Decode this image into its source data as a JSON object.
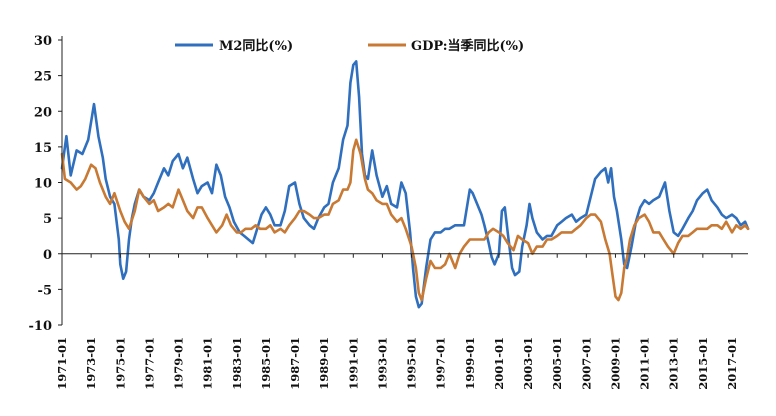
{
  "chart_data": {
    "type": "line",
    "title": "",
    "xlabel": "",
    "ylabel": "",
    "ylim": [
      -10,
      30
    ],
    "yticks": [
      30,
      25,
      20,
      15,
      10,
      5,
      0,
      -5,
      -10
    ],
    "xticks": [
      "1971-01",
      "1973-01",
      "1975-01",
      "1977-01",
      "1979-01",
      "1981-01",
      "1983-01",
      "1985-01",
      "1987-01",
      "1989-01",
      "1991-01",
      "1993-01",
      "1995-01",
      "1997-01",
      "1999-01",
      "2001-01",
      "2003-01",
      "2005-01",
      "2007-01",
      "2009-01",
      "2011-01",
      "2013-01",
      "2015-01",
      "2017-01"
    ],
    "grid": false,
    "legend_position": "top",
    "series": [
      {
        "name": "M2同比(%)",
        "color": "#2f6fbe",
        "points": [
          [
            1971.0,
            12
          ],
          [
            1971.3,
            16.5
          ],
          [
            1971.6,
            11
          ],
          [
            1972.0,
            14.5
          ],
          [
            1972.4,
            14
          ],
          [
            1972.8,
            16
          ],
          [
            1973.0,
            18.5
          ],
          [
            1973.2,
            21
          ],
          [
            1973.5,
            16.5
          ],
          [
            1973.8,
            13.5
          ],
          [
            1974.0,
            10.5
          ],
          [
            1974.3,
            8
          ],
          [
            1974.6,
            7
          ],
          [
            1974.9,
            2
          ],
          [
            1975.0,
            -1.5
          ],
          [
            1975.2,
            -3.5
          ],
          [
            1975.4,
            -2.5
          ],
          [
            1975.6,
            2
          ],
          [
            1975.8,
            5
          ],
          [
            1976.0,
            7
          ],
          [
            1976.3,
            9
          ],
          [
            1976.6,
            8
          ],
          [
            1977.0,
            7.5
          ],
          [
            1977.3,
            8.5
          ],
          [
            1977.6,
            10
          ],
          [
            1978.0,
            12
          ],
          [
            1978.3,
            11
          ],
          [
            1978.6,
            13
          ],
          [
            1979.0,
            14
          ],
          [
            1979.3,
            12
          ],
          [
            1979.6,
            13.5
          ],
          [
            1980.0,
            10.5
          ],
          [
            1980.3,
            8.5
          ],
          [
            1980.6,
            9.5
          ],
          [
            1981.0,
            10
          ],
          [
            1981.3,
            8.5
          ],
          [
            1981.6,
            12.5
          ],
          [
            1981.9,
            11
          ],
          [
            1982.2,
            8
          ],
          [
            1982.5,
            6.5
          ],
          [
            1982.8,
            4.5
          ],
          [
            1983.2,
            3
          ],
          [
            1983.5,
            2.5
          ],
          [
            1983.8,
            2
          ],
          [
            1984.1,
            1.5
          ],
          [
            1984.4,
            3.5
          ],
          [
            1984.7,
            5.5
          ],
          [
            1985.0,
            6.5
          ],
          [
            1985.3,
            5.5
          ],
          [
            1985.6,
            4
          ],
          [
            1986.0,
            4
          ],
          [
            1986.3,
            6
          ],
          [
            1986.6,
            9.5
          ],
          [
            1987.0,
            10
          ],
          [
            1987.3,
            7
          ],
          [
            1987.6,
            5
          ],
          [
            1988.0,
            4
          ],
          [
            1988.3,
            3.5
          ],
          [
            1988.6,
            5
          ],
          [
            1989.0,
            6.5
          ],
          [
            1989.3,
            7
          ],
          [
            1989.6,
            10
          ],
          [
            1990.0,
            12
          ],
          [
            1990.3,
            16
          ],
          [
            1990.6,
            18
          ],
          [
            1990.8,
            24
          ],
          [
            1991.0,
            26.5
          ],
          [
            1991.2,
            27
          ],
          [
            1991.4,
            22
          ],
          [
            1991.6,
            14
          ],
          [
            1991.8,
            11
          ],
          [
            1992.0,
            10.5
          ],
          [
            1992.3,
            14.5
          ],
          [
            1992.6,
            11
          ],
          [
            1993.0,
            8
          ],
          [
            1993.3,
            9.5
          ],
          [
            1993.6,
            7
          ],
          [
            1994.0,
            6.5
          ],
          [
            1994.3,
            10
          ],
          [
            1994.6,
            8.5
          ],
          [
            1994.9,
            3
          ],
          [
            1995.1,
            -2
          ],
          [
            1995.3,
            -6
          ],
          [
            1995.5,
            -7.5
          ],
          [
            1995.7,
            -7
          ],
          [
            1996.0,
            -2
          ],
          [
            1996.3,
            2
          ],
          [
            1996.6,
            3
          ],
          [
            1997.0,
            3
          ],
          [
            1997.3,
            3.5
          ],
          [
            1997.6,
            3.5
          ],
          [
            1998.0,
            4
          ],
          [
            1998.3,
            4
          ],
          [
            1998.6,
            4
          ],
          [
            1999.0,
            9
          ],
          [
            1999.2,
            8.5
          ],
          [
            1999.5,
            7
          ],
          [
            1999.8,
            5.5
          ],
          [
            2000.0,
            4
          ],
          [
            2000.3,
            1.5
          ],
          [
            2000.5,
            -0.5
          ],
          [
            2000.7,
            -1.5
          ],
          [
            2001.0,
            0
          ],
          [
            2001.2,
            6
          ],
          [
            2001.4,
            6.5
          ],
          [
            2001.6,
            3
          ],
          [
            2001.9,
            -2
          ],
          [
            2002.1,
            -3
          ],
          [
            2002.4,
            -2.5
          ],
          [
            2002.6,
            1
          ],
          [
            2002.9,
            4
          ],
          [
            2003.1,
            7
          ],
          [
            2003.3,
            5
          ],
          [
            2003.6,
            3
          ],
          [
            2004.0,
            2
          ],
          [
            2004.3,
            2.5
          ],
          [
            2004.6,
            2.5
          ],
          [
            2005.0,
            4
          ],
          [
            2005.3,
            4.5
          ],
          [
            2005.6,
            5
          ],
          [
            2006.0,
            5.5
          ],
          [
            2006.3,
            4.5
          ],
          [
            2006.6,
            5
          ],
          [
            2007.0,
            5.5
          ],
          [
            2007.3,
            8
          ],
          [
            2007.6,
            10.5
          ],
          [
            2008.0,
            11.5
          ],
          [
            2008.3,
            12
          ],
          [
            2008.5,
            10
          ],
          [
            2008.7,
            12
          ],
          [
            2008.9,
            8
          ],
          [
            2009.1,
            6
          ],
          [
            2009.4,
            2
          ],
          [
            2009.6,
            -1.5
          ],
          [
            2009.8,
            -2
          ],
          [
            2010.1,
            1
          ],
          [
            2010.4,
            4.5
          ],
          [
            2010.7,
            6.5
          ],
          [
            2011.0,
            7.5
          ],
          [
            2011.3,
            7
          ],
          [
            2011.6,
            7.5
          ],
          [
            2012.0,
            8
          ],
          [
            2012.4,
            10
          ],
          [
            2012.7,
            6
          ],
          [
            2013.0,
            3
          ],
          [
            2013.3,
            2.5
          ],
          [
            2013.6,
            3.5
          ],
          [
            2014.0,
            5
          ],
          [
            2014.3,
            6
          ],
          [
            2014.6,
            7.5
          ],
          [
            2015.0,
            8.5
          ],
          [
            2015.3,
            9
          ],
          [
            2015.6,
            7.5
          ],
          [
            2016.0,
            6.5
          ],
          [
            2016.3,
            5.5
          ],
          [
            2016.6,
            5
          ],
          [
            2017.0,
            5.5
          ],
          [
            2017.3,
            5
          ],
          [
            2017.6,
            4
          ],
          [
            2017.9,
            4.5
          ],
          [
            2018.1,
            3.5
          ]
        ]
      },
      {
        "name": "GDP:当季同比(%)",
        "color": "#c87933",
        "points": [
          [
            1971.0,
            14
          ],
          [
            1971.2,
            10.5
          ],
          [
            1971.6,
            10
          ],
          [
            1972.0,
            9
          ],
          [
            1972.3,
            9.5
          ],
          [
            1972.6,
            10.5
          ],
          [
            1973.0,
            12.5
          ],
          [
            1973.3,
            12
          ],
          [
            1973.6,
            10
          ],
          [
            1974.0,
            8
          ],
          [
            1974.3,
            7
          ],
          [
            1974.6,
            8.5
          ],
          [
            1975.0,
            6
          ],
          [
            1975.3,
            4.5
          ],
          [
            1975.6,
            3.5
          ],
          [
            1976.0,
            6
          ],
          [
            1976.3,
            9
          ],
          [
            1976.6,
            8
          ],
          [
            1977.0,
            7
          ],
          [
            1977.3,
            7.5
          ],
          [
            1977.6,
            6
          ],
          [
            1978.0,
            6.5
          ],
          [
            1978.3,
            7
          ],
          [
            1978.6,
            6.5
          ],
          [
            1979.0,
            9
          ],
          [
            1979.3,
            7.5
          ],
          [
            1979.6,
            6
          ],
          [
            1980.0,
            5
          ],
          [
            1980.3,
            6.5
          ],
          [
            1980.6,
            6.5
          ],
          [
            1981.0,
            5
          ],
          [
            1981.3,
            4
          ],
          [
            1981.6,
            3
          ],
          [
            1982.0,
            4
          ],
          [
            1982.3,
            5.5
          ],
          [
            1982.6,
            4
          ],
          [
            1983.0,
            3
          ],
          [
            1983.3,
            3
          ],
          [
            1983.6,
            3.5
          ],
          [
            1984.0,
            3.5
          ],
          [
            1984.3,
            4
          ],
          [
            1984.6,
            3.5
          ],
          [
            1985.0,
            3.5
          ],
          [
            1985.3,
            4
          ],
          [
            1985.6,
            3
          ],
          [
            1986.0,
            3.5
          ],
          [
            1986.3,
            3
          ],
          [
            1986.6,
            4
          ],
          [
            1987.0,
            5
          ],
          [
            1987.3,
            6
          ],
          [
            1987.6,
            6
          ],
          [
            1988.0,
            5.5
          ],
          [
            1988.3,
            5
          ],
          [
            1988.6,
            5
          ],
          [
            1989.0,
            5.5
          ],
          [
            1989.3,
            5.5
          ],
          [
            1989.6,
            7
          ],
          [
            1990.0,
            7.5
          ],
          [
            1990.3,
            9
          ],
          [
            1990.6,
            9
          ],
          [
            1990.8,
            10
          ],
          [
            1991.0,
            14.5
          ],
          [
            1991.2,
            16
          ],
          [
            1991.5,
            14
          ],
          [
            1991.8,
            10.5
          ],
          [
            1992.0,
            9
          ],
          [
            1992.3,
            8.5
          ],
          [
            1992.6,
            7.5
          ],
          [
            1993.0,
            7
          ],
          [
            1993.3,
            7
          ],
          [
            1993.6,
            5.5
          ],
          [
            1994.0,
            4.5
          ],
          [
            1994.3,
            5
          ],
          [
            1994.6,
            3.5
          ],
          [
            1995.0,
            1
          ],
          [
            1995.3,
            -2
          ],
          [
            1995.5,
            -5.5
          ],
          [
            1995.7,
            -6.5
          ],
          [
            1996.0,
            -3.5
          ],
          [
            1996.3,
            -1
          ],
          [
            1996.6,
            -2
          ],
          [
            1997.0,
            -2
          ],
          [
            1997.3,
            -1.5
          ],
          [
            1997.6,
            0
          ],
          [
            1998.0,
            -2
          ],
          [
            1998.3,
            0
          ],
          [
            1998.6,
            1
          ],
          [
            1999.0,
            2
          ],
          [
            1999.3,
            2
          ],
          [
            1999.6,
            2
          ],
          [
            2000.0,
            2
          ],
          [
            2000.3,
            3
          ],
          [
            2000.6,
            3.5
          ],
          [
            2001.0,
            3
          ],
          [
            2001.3,
            2.5
          ],
          [
            2001.6,
            1.5
          ],
          [
            2002.0,
            0.5
          ],
          [
            2002.3,
            2.5
          ],
          [
            2002.6,
            2
          ],
          [
            2003.0,
            1.5
          ],
          [
            2003.3,
            0
          ],
          [
            2003.6,
            1
          ],
          [
            2004.0,
            1
          ],
          [
            2004.3,
            2
          ],
          [
            2004.6,
            2
          ],
          [
            2005.0,
            2.5
          ],
          [
            2005.3,
            3
          ],
          [
            2005.6,
            3
          ],
          [
            2006.0,
            3
          ],
          [
            2006.3,
            3.5
          ],
          [
            2006.6,
            4
          ],
          [
            2007.0,
            5
          ],
          [
            2007.3,
            5.5
          ],
          [
            2007.6,
            5.5
          ],
          [
            2008.0,
            4.5
          ],
          [
            2008.3,
            2
          ],
          [
            2008.6,
            0
          ],
          [
            2008.8,
            -3
          ],
          [
            2009.0,
            -6
          ],
          [
            2009.2,
            -6.5
          ],
          [
            2009.4,
            -5.5
          ],
          [
            2009.6,
            -2
          ],
          [
            2009.8,
            -0.5
          ],
          [
            2010.0,
            2
          ],
          [
            2010.3,
            4
          ],
          [
            2010.6,
            5
          ],
          [
            2011.0,
            5.5
          ],
          [
            2011.3,
            4.5
          ],
          [
            2011.6,
            3
          ],
          [
            2012.0,
            3
          ],
          [
            2012.3,
            2
          ],
          [
            2012.6,
            1
          ],
          [
            2013.0,
            0
          ],
          [
            2013.3,
            1.5
          ],
          [
            2013.6,
            2.5
          ],
          [
            2014.0,
            2.5
          ],
          [
            2014.3,
            3
          ],
          [
            2014.6,
            3.5
          ],
          [
            2015.0,
            3.5
          ],
          [
            2015.3,
            3.5
          ],
          [
            2015.6,
            4
          ],
          [
            2016.0,
            4
          ],
          [
            2016.3,
            3.5
          ],
          [
            2016.6,
            4.5
          ],
          [
            2017.0,
            3
          ],
          [
            2017.3,
            4
          ],
          [
            2017.6,
            3.5
          ],
          [
            2017.9,
            4
          ],
          [
            2018.1,
            3.5
          ]
        ]
      }
    ]
  }
}
